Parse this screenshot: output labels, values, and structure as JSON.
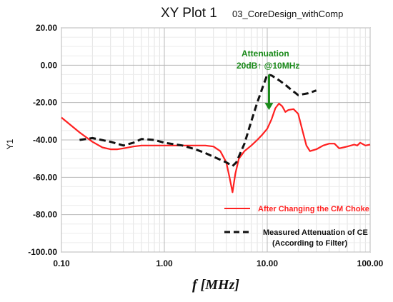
{
  "chart_data": {
    "type": "line",
    "title": "XY Plot 1",
    "subtitle": "03_CoreDesign_withComp",
    "xlabel": "f [MHz]",
    "ylabel": "Y1",
    "x_scale": "log",
    "xlim": [
      0.1,
      100
    ],
    "ylim": [
      -100,
      20
    ],
    "x_ticks": [
      0.1,
      1,
      10,
      100
    ],
    "x_tick_labels": [
      "0.10",
      "1.00",
      "10.00",
      "100.00"
    ],
    "y_ticks": [
      20,
      0,
      -20,
      -40,
      -60,
      -80,
      -100
    ],
    "y_tick_labels": [
      "20.00",
      "0.00",
      "-20.00",
      "-40.00",
      "-60.00",
      "-80.00",
      "-100.00"
    ],
    "grid": true,
    "legend_position": "bottom-right",
    "series": [
      {
        "name": "After Changing the CM Choke",
        "color": "#ff2020",
        "style": "solid",
        "points": [
          [
            0.1,
            -28
          ],
          [
            0.15,
            -36
          ],
          [
            0.2,
            -41
          ],
          [
            0.25,
            -44
          ],
          [
            0.3,
            -45
          ],
          [
            0.35,
            -45
          ],
          [
            0.4,
            -44.5
          ],
          [
            0.5,
            -43.5
          ],
          [
            0.6,
            -43
          ],
          [
            0.8,
            -43
          ],
          [
            1.0,
            -43
          ],
          [
            1.5,
            -43
          ],
          [
            2.0,
            -43
          ],
          [
            2.5,
            -43
          ],
          [
            3.0,
            -43.5
          ],
          [
            3.5,
            -46
          ],
          [
            4.0,
            -52
          ],
          [
            4.3,
            -60
          ],
          [
            4.6,
            -68
          ],
          [
            4.9,
            -58
          ],
          [
            5.3,
            -50
          ],
          [
            6.0,
            -46
          ],
          [
            7.0,
            -43
          ],
          [
            8.0,
            -40
          ],
          [
            9.0,
            -37
          ],
          [
            10.0,
            -34
          ],
          [
            11.0,
            -29
          ],
          [
            12.0,
            -23
          ],
          [
            13.0,
            -20.5
          ],
          [
            14.0,
            -22
          ],
          [
            15.0,
            -25
          ],
          [
            16.0,
            -24
          ],
          [
            18.0,
            -23.5
          ],
          [
            20.0,
            -26
          ],
          [
            22.0,
            -35
          ],
          [
            24.0,
            -43
          ],
          [
            26.0,
            -46
          ],
          [
            30.0,
            -45
          ],
          [
            35.0,
            -43
          ],
          [
            40.0,
            -42
          ],
          [
            45.0,
            -42
          ],
          [
            50.0,
            -44.5
          ],
          [
            55.0,
            -44
          ],
          [
            60.0,
            -43.5
          ],
          [
            70.0,
            -42.5
          ],
          [
            75.0,
            -43
          ],
          [
            80.0,
            -41.5
          ],
          [
            90.0,
            -43
          ],
          [
            100.0,
            -42.5
          ]
        ]
      },
      {
        "name": "Measured Attenuation of CE (According to Filter)",
        "legend_lines": [
          "Measured Attenuation of CE",
          "(According to Filter)"
        ],
        "color": "#111111",
        "style": "dashed",
        "points": [
          [
            0.15,
            -40
          ],
          [
            0.2,
            -39
          ],
          [
            0.3,
            -41
          ],
          [
            0.4,
            -43
          ],
          [
            0.5,
            -41.5
          ],
          [
            0.6,
            -39.5
          ],
          [
            0.8,
            -40
          ],
          [
            1.0,
            -41.5
          ],
          [
            1.5,
            -43
          ],
          [
            2.0,
            -45
          ],
          [
            2.5,
            -47
          ],
          [
            3.0,
            -49
          ],
          [
            4.0,
            -52
          ],
          [
            4.6,
            -54
          ],
          [
            5.0,
            -52
          ],
          [
            6.0,
            -42
          ],
          [
            7.0,
            -30
          ],
          [
            8.0,
            -20
          ],
          [
            9.0,
            -12
          ],
          [
            10.0,
            -5
          ],
          [
            11.0,
            -5.5
          ],
          [
            13.0,
            -8
          ],
          [
            15.0,
            -10.5
          ],
          [
            17.0,
            -13
          ],
          [
            20.0,
            -16
          ],
          [
            25.0,
            -15
          ],
          [
            30.0,
            -13.5
          ]
        ]
      }
    ],
    "annotation": {
      "lines": [
        "Attenuation",
        "20dB↑ @10MHz"
      ],
      "arrow_from": [
        10.4,
        -5
      ],
      "arrow_to": [
        10.4,
        -24
      ],
      "color": "#1a8a1a"
    }
  }
}
